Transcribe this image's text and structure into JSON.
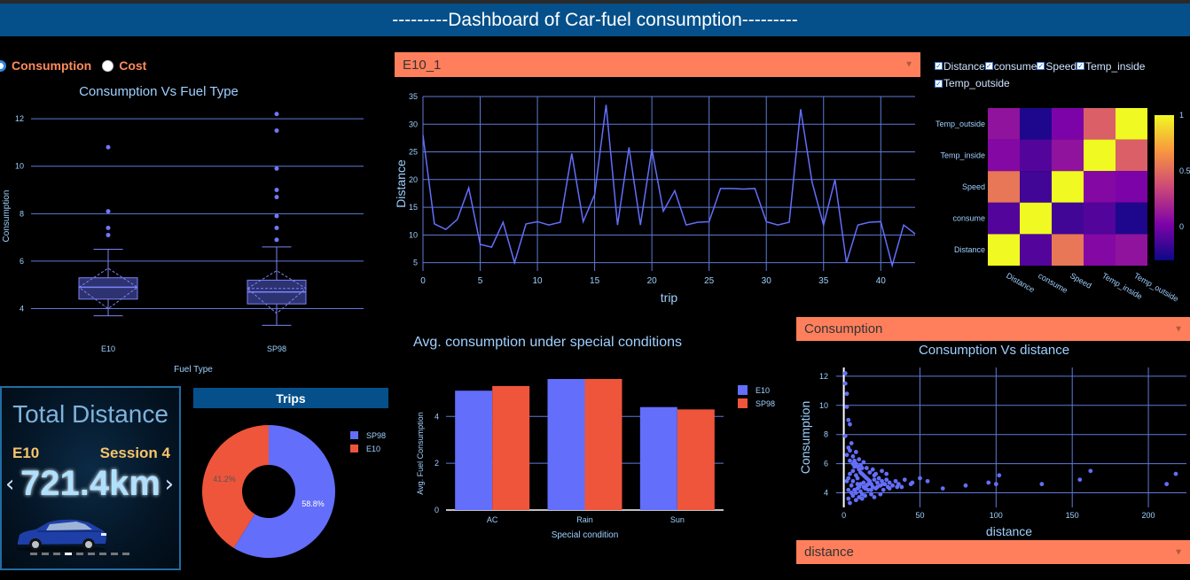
{
  "header": {
    "title": "---------Dashboard of Car-fuel consumption---------"
  },
  "colors": {
    "header_bg": "#05508a",
    "dropdown_bg": "#ff7f5c",
    "series_blue": "#636efa",
    "series_red": "#ef553b",
    "text_light": "#9fd0ff"
  },
  "radio": {
    "options": [
      "Consumption",
      "Cost"
    ],
    "selected": "Consumption"
  },
  "boxplot": {
    "title": "Consumption Vs Fuel Type",
    "xlabel": "Fuel Type",
    "ylabel": "Consumption",
    "yticks": [
      "4",
      "6",
      "8",
      "10",
      "12"
    ],
    "categories": [
      "E10",
      "SP98"
    ],
    "chart_data": {
      "type": "box",
      "ylim": [
        3.2,
        12.6
      ],
      "groups": [
        {
          "name": "E10",
          "min": 3.7,
          "q1": 4.4,
          "median": 4.9,
          "q3": 5.3,
          "max": 6.5,
          "mean": 4.9,
          "outliers": [
            7.1,
            7.4,
            8.1,
            10.8
          ]
        },
        {
          "name": "SP98",
          "min": 3.3,
          "q1": 4.2,
          "median": 4.7,
          "q3": 5.2,
          "max": 6.6,
          "mean": 4.85,
          "outliers": [
            6.9,
            7.4,
            7.9,
            8.7,
            9.0,
            9.9,
            11.5,
            12.2
          ]
        }
      ]
    }
  },
  "trip_dropdown": {
    "value": "E10_1"
  },
  "line": {
    "xlabel": "trip",
    "ylabel": "Distance",
    "xticks": [
      "0",
      "5",
      "10",
      "15",
      "20",
      "25",
      "30",
      "35",
      "40"
    ],
    "yticks": [
      "5",
      "10",
      "15",
      "20",
      "25",
      "30",
      "35"
    ],
    "chart_data": {
      "type": "line",
      "xlim": [
        0,
        43
      ],
      "ylim": [
        3.5,
        35
      ],
      "x": [
        0,
        1,
        2,
        3,
        4,
        5,
        6,
        7,
        8,
        9,
        10,
        11,
        12,
        13,
        14,
        15,
        16,
        17,
        18,
        19,
        20,
        21,
        22,
        23,
        24,
        25,
        26,
        27,
        28,
        29,
        30,
        31,
        32,
        33,
        34,
        35,
        36,
        37,
        38,
        39,
        40,
        41,
        42,
        43
      ],
      "y": [
        28,
        12,
        11,
        12.8,
        18.5,
        8.3,
        7.8,
        12.3,
        5,
        12,
        12.4,
        11.8,
        12.3,
        24.7,
        12.4,
        17.3,
        33.5,
        11.8,
        25.8,
        11.8,
        25.5,
        14.3,
        18,
        11.8,
        12.3,
        12.4,
        18.4,
        18.4,
        18.3,
        18.4,
        12.4,
        11.8,
        12.3,
        32.7,
        19.5,
        11.8,
        20,
        5,
        11.8,
        12.3,
        12.4,
        4.5,
        11.8,
        10.2
      ]
    }
  },
  "checkboxes": {
    "items": [
      "Distance",
      "consume",
      "Speed",
      "Temp_inside",
      "Temp_outside"
    ]
  },
  "heatmap": {
    "rows": [
      "Temp_outside",
      "Temp_inside",
      "Speed",
      "consume",
      "Distance"
    ],
    "cols": [
      "Distance",
      "consume",
      "Speed",
      "Temp_inside",
      "Temp_outside"
    ],
    "colorbar_ticks": [
      "1",
      "0.5",
      "0"
    ],
    "chart_data": {
      "type": "heatmap",
      "zlim": [
        -0.3,
        1
      ],
      "z": [
        [
          0.1,
          -0.25,
          0.02,
          0.45,
          1
        ],
        [
          0.05,
          -0.1,
          0.1,
          1,
          0.45
        ],
        [
          0.55,
          -0.15,
          1,
          0.05,
          0.02
        ],
        [
          -0.1,
          1,
          -0.15,
          -0.1,
          -0.25
        ],
        [
          1,
          -0.1,
          0.55,
          0.05,
          0.1
        ]
      ]
    }
  },
  "bar": {
    "title": "Avg. consumption under special conditions",
    "xlabel": "Special condition",
    "ylabel": "Avg. Fuel Consumption",
    "yticks": [
      "0",
      "2",
      "4"
    ],
    "chart_data": {
      "type": "bar",
      "categories": [
        "AC",
        "Rain",
        "Sun"
      ],
      "ylim": [
        0,
        5.6
      ],
      "series": [
        {
          "name": "E10",
          "values": [
            5.1,
            5.6,
            4.4
          ]
        },
        {
          "name": "SP98",
          "values": [
            5.3,
            5.6,
            4.3
          ]
        }
      ]
    }
  },
  "kpi": {
    "title": "Total Distance",
    "fuel": "E10",
    "session": "Session 4",
    "value": "721.4km",
    "prev_arrow": "‹",
    "next_arrow": "›",
    "dot_count": 9,
    "active_dot": 3,
    "car_icon": "car-icon"
  },
  "trips": {
    "title": "Trips",
    "chart_data": {
      "type": "pie",
      "hole": true,
      "slices": [
        {
          "name": "SP98",
          "value": 58.8,
          "label": "58.8%"
        },
        {
          "name": "E10",
          "value": 41.2,
          "label": "41.2%"
        }
      ]
    }
  },
  "scatter_dropdown_y": {
    "value": "Consumption"
  },
  "scatter_dropdown_x": {
    "value": "distance"
  },
  "scatter": {
    "title": "Consumption Vs distance",
    "xlabel": "distance",
    "ylabel": "Consumption",
    "xticks": [
      "0",
      "50",
      "100",
      "150",
      "200"
    ],
    "yticks": [
      "4",
      "6",
      "8",
      "10",
      "12"
    ],
    "chart_data": {
      "type": "scatter",
      "xlim": [
        -5,
        225
      ],
      "ylim": [
        3,
        12.6
      ],
      "points": [
        [
          1,
          12.2
        ],
        [
          1,
          11.5
        ],
        [
          2,
          10.8
        ],
        [
          2,
          9.9
        ],
        [
          3,
          9
        ],
        [
          4,
          8.7
        ],
        [
          1,
          7.9
        ],
        [
          5,
          7.4
        ],
        [
          3,
          7.1
        ],
        [
          2,
          6.6
        ],
        [
          4,
          6.9
        ],
        [
          6,
          6.5
        ],
        [
          7,
          6.2
        ],
        [
          8,
          6
        ],
        [
          9,
          5.8
        ],
        [
          10,
          5.6
        ],
        [
          11,
          5.4
        ],
        [
          12,
          5.3
        ],
        [
          13,
          5.2
        ],
        [
          14,
          5.1
        ],
        [
          15,
          5.0
        ],
        [
          16,
          4.9
        ],
        [
          5,
          4.5
        ],
        [
          6,
          4.8
        ],
        [
          7,
          4.2
        ],
        [
          8,
          4.0
        ],
        [
          9,
          4.6
        ],
        [
          10,
          4.4
        ],
        [
          11,
          4.1
        ],
        [
          12,
          3.9
        ],
        [
          13,
          4.7
        ],
        [
          14,
          4.3
        ],
        [
          15,
          4.5
        ],
        [
          16,
          4.2
        ],
        [
          17,
          4.8
        ],
        [
          18,
          4.6
        ],
        [
          19,
          4.4
        ],
        [
          20,
          4.9
        ],
        [
          21,
          4.3
        ],
        [
          22,
          4.7
        ],
        [
          23,
          5.0
        ],
        [
          24,
          4.5
        ],
        [
          25,
          4.8
        ],
        [
          26,
          4.2
        ],
        [
          27,
          4.6
        ],
        [
          28,
          4.9
        ],
        [
          29,
          4.4
        ],
        [
          30,
          4.7
        ],
        [
          32,
          4.5
        ],
        [
          34,
          4.8
        ],
        [
          36,
          4.6
        ],
        [
          38,
          4.4
        ],
        [
          40,
          4.9
        ],
        [
          45,
          4.7
        ],
        [
          50,
          5.0
        ],
        [
          55,
          4.8
        ],
        [
          65,
          4.3
        ],
        [
          80,
          4.5
        ],
        [
          95,
          4.7
        ],
        [
          100,
          4.6
        ],
        [
          102,
          5.2
        ],
        [
          130,
          4.6
        ],
        [
          155,
          4.9
        ],
        [
          162,
          5.5
        ],
        [
          212,
          4.6
        ],
        [
          218,
          5.3
        ],
        [
          3,
          3.6
        ],
        [
          4,
          3.3
        ],
        [
          6,
          3.8
        ],
        [
          8,
          3.5
        ],
        [
          10,
          3.7
        ],
        [
          12,
          3.6
        ],
        [
          14,
          3.8
        ],
        [
          18,
          3.9
        ],
        [
          20,
          3.7
        ],
        [
          24,
          3.9
        ],
        [
          6,
          5.5
        ],
        [
          7,
          5.8
        ],
        [
          8,
          5.2
        ],
        [
          9,
          5.0
        ],
        [
          11,
          5.9
        ],
        [
          13,
          6.1
        ],
        [
          15,
          5.7
        ],
        [
          17,
          5.4
        ],
        [
          19,
          5.6
        ],
        [
          21,
          5.3
        ],
        [
          3,
          5.0
        ],
        [
          4,
          5.3
        ],
        [
          2,
          4.8
        ],
        [
          3,
          4.2
        ],
        [
          5,
          4.0
        ],
        [
          9,
          4.3
        ],
        [
          11,
          4.6
        ],
        [
          13,
          4.4
        ],
        [
          16,
          4.6
        ],
        [
          18,
          4.2
        ],
        [
          22,
          4.4
        ],
        [
          26,
          4.6
        ],
        [
          30,
          4.3
        ],
        [
          35,
          4.4
        ],
        [
          44,
          4.6
        ],
        [
          8,
          6.8
        ],
        [
          4,
          6.2
        ],
        [
          6,
          6.0
        ],
        [
          10,
          6.3
        ],
        [
          12,
          5.7
        ],
        [
          20,
          5.2
        ],
        [
          25,
          5.5
        ],
        [
          28,
          5.3
        ]
      ]
    }
  }
}
